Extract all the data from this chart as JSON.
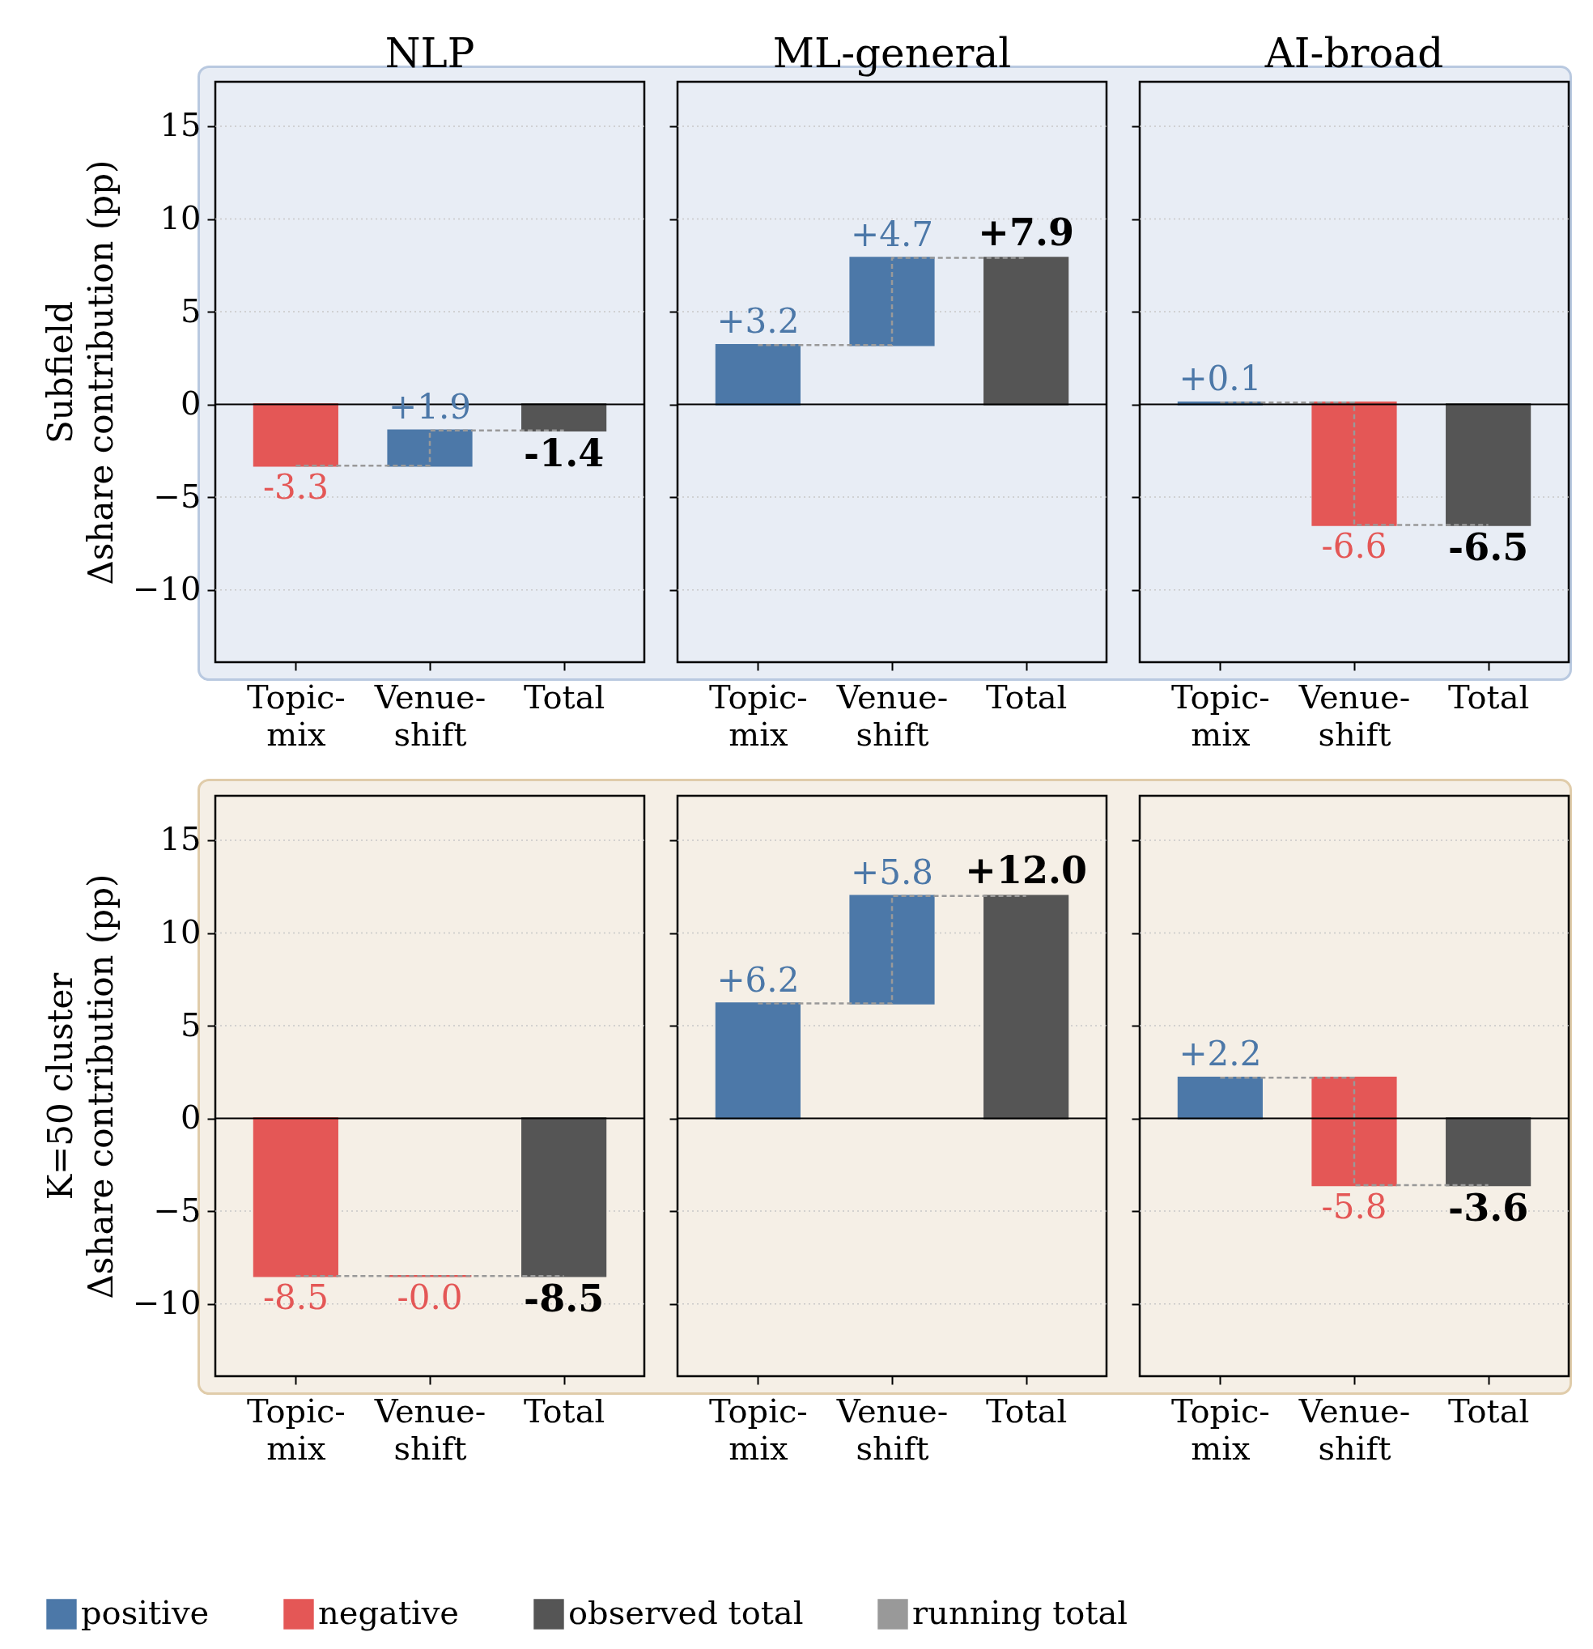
{
  "chart_data": [
    {
      "type": "bar",
      "title": "NLP",
      "ylabel": "Subfield\nΔshare contribution (pp)",
      "categories": [
        "Topic-mix",
        "Venue-shift",
        "Total"
      ],
      "ylim": [
        -13.9,
        17.4
      ],
      "yticks": [
        -10,
        -5,
        0,
        5,
        10,
        15
      ],
      "grid": "y",
      "ref_lines": [
        {
          "axis": "y",
          "value": 0
        }
      ],
      "series": [
        {
          "color": "#4c78a8",
          "values": [
            null,
            1.9,
            null
          ],
          "base": [
            null,
            -3.3,
            null
          ],
          "value_labels": [
            null,
            "+1.9",
            null
          ]
        },
        {
          "color": "#e45756",
          "values": [
            -3.3,
            null,
            null
          ],
          "base": [
            0,
            null,
            null
          ],
          "value_labels": [
            "-3.3",
            null,
            null
          ]
        },
        {
          "color": "#555555",
          "values": [
            null,
            null,
            -1.4
          ],
          "base": [
            null,
            null,
            0
          ],
          "value_labels": [
            null,
            null,
            "-1.4"
          ]
        },
        {
          "type": "step",
          "line_style": "dashed",
          "color": "#999999",
          "values": [
            -3.3,
            -1.4,
            -1.4
          ]
        }
      ]
    },
    {
      "type": "bar",
      "title": "ML-general",
      "categories": [
        "Topic-mix",
        "Venue-shift",
        "Total"
      ],
      "ylim": [
        -13.9,
        17.4
      ],
      "yticks": [
        -10,
        -5,
        0,
        5,
        10,
        15
      ],
      "tick_labels": "x",
      "grid": "y",
      "ref_lines": [
        {
          "axis": "y",
          "value": 0
        }
      ],
      "series": [
        {
          "color": "#4c78a8",
          "values": [
            3.2,
            4.7,
            null
          ],
          "base": [
            0,
            3.2,
            null
          ],
          "value_labels": [
            "+3.2",
            "+4.7",
            null
          ]
        },
        {
          "color": "#e45756",
          "values": [
            null,
            null,
            null
          ],
          "base": [
            null,
            null,
            null
          ],
          "value_labels": [
            null,
            null,
            null
          ]
        },
        {
          "color": "#555555",
          "values": [
            null,
            null,
            7.9
          ],
          "base": [
            null,
            null,
            0
          ],
          "value_labels": [
            null,
            null,
            "+7.9"
          ]
        },
        {
          "type": "step",
          "line_style": "dashed",
          "color": "#999999",
          "values": [
            3.2,
            7.9,
            7.9
          ]
        }
      ]
    },
    {
      "type": "bar",
      "title": "AI-broad",
      "categories": [
        "Topic-mix",
        "Venue-shift",
        "Total"
      ],
      "ylim": [
        -13.9,
        17.4
      ],
      "yticks": [
        -10,
        -5,
        0,
        5,
        10,
        15
      ],
      "tick_labels": "x",
      "grid": "y",
      "ref_lines": [
        {
          "axis": "y",
          "value": 0
        }
      ],
      "series": [
        {
          "color": "#4c78a8",
          "values": [
            0.1,
            null,
            null
          ],
          "base": [
            0,
            null,
            null
          ],
          "value_labels": [
            "+0.1",
            null,
            null
          ]
        },
        {
          "color": "#e45756",
          "values": [
            null,
            -6.6,
            null
          ],
          "base": [
            null,
            0.1,
            null
          ],
          "value_labels": [
            null,
            "-6.6",
            null
          ]
        },
        {
          "color": "#555555",
          "values": [
            null,
            null,
            -6.5
          ],
          "base": [
            null,
            null,
            0
          ],
          "value_labels": [
            null,
            null,
            "-6.5"
          ]
        },
        {
          "type": "step",
          "line_style": "dashed",
          "color": "#999999",
          "values": [
            0.1,
            -6.5,
            -6.5
          ]
        }
      ]
    },
    {
      "type": "bar",
      "ylabel": "K=50 cluster\nΔshare contribution (pp)",
      "categories": [
        "Topic-mix",
        "Venue-shift",
        "Total"
      ],
      "ylim": [
        -13.9,
        17.4
      ],
      "yticks": [
        -10,
        -5,
        0,
        5,
        10,
        15
      ],
      "grid": "y",
      "legend": "bottom",
      "ref_lines": [
        {
          "axis": "y",
          "value": 0
        }
      ],
      "series": [
        {
          "name": "positive",
          "color": "#4c78a8",
          "values": [
            null,
            null,
            null
          ],
          "base": [
            null,
            null,
            null
          ],
          "value_labels": [
            null,
            null,
            null
          ]
        },
        {
          "name": "negative",
          "color": "#e45756",
          "values": [
            -8.5,
            -0.0,
            null
          ],
          "base": [
            0,
            -8.5,
            null
          ],
          "value_labels": [
            "-8.5",
            "-0.0",
            null
          ]
        },
        {
          "name": "observed total",
          "color": "#555555",
          "values": [
            null,
            null,
            -8.5
          ],
          "base": [
            null,
            null,
            0
          ],
          "value_labels": [
            null,
            null,
            "-8.5"
          ]
        },
        {
          "name": "running total",
          "type": "step",
          "line_style": "dashed",
          "color": "#999999",
          "values": [
            -8.5,
            -8.5,
            -8.5
          ]
        }
      ]
    },
    {
      "type": "bar",
      "categories": [
        "Topic-mix",
        "Venue-shift",
        "Total"
      ],
      "ylim": [
        -13.9,
        17.4
      ],
      "yticks": [
        -10,
        -5,
        0,
        5,
        10,
        15
      ],
      "tick_labels": "x",
      "grid": "y",
      "ref_lines": [
        {
          "axis": "y",
          "value": 0
        }
      ],
      "series": [
        {
          "color": "#4c78a8",
          "values": [
            6.2,
            5.8,
            null
          ],
          "base": [
            0,
            6.2,
            null
          ],
          "value_labels": [
            "+6.2",
            "+5.8",
            null
          ]
        },
        {
          "color": "#e45756",
          "values": [
            null,
            null,
            null
          ],
          "base": [
            null,
            null,
            null
          ],
          "value_labels": [
            null,
            null,
            null
          ]
        },
        {
          "color": "#555555",
          "values": [
            null,
            null,
            12.0
          ],
          "base": [
            null,
            null,
            0
          ],
          "value_labels": [
            null,
            null,
            "+12.0"
          ]
        },
        {
          "type": "step",
          "line_style": "dashed",
          "color": "#999999",
          "values": [
            6.2,
            12.0,
            12.0
          ]
        }
      ]
    },
    {
      "type": "bar",
      "categories": [
        "Topic-mix",
        "Venue-shift",
        "Total"
      ],
      "ylim": [
        -13.9,
        17.4
      ],
      "yticks": [
        -10,
        -5,
        0,
        5,
        10,
        15
      ],
      "tick_labels": "x",
      "grid": "y",
      "ref_lines": [
        {
          "axis": "y",
          "value": 0
        }
      ],
      "series": [
        {
          "color": "#4c78a8",
          "values": [
            2.2,
            null,
            null
          ],
          "base": [
            0,
            null,
            null
          ],
          "value_labels": [
            "+2.2",
            null,
            null
          ]
        },
        {
          "color": "#e45756",
          "values": [
            null,
            -5.8,
            null
          ],
          "base": [
            null,
            2.2,
            null
          ],
          "value_labels": [
            null,
            "-5.8",
            null
          ]
        },
        {
          "color": "#555555",
          "values": [
            null,
            null,
            -3.6
          ],
          "base": [
            null,
            null,
            0
          ],
          "value_labels": [
            null,
            null,
            "-3.6"
          ]
        },
        {
          "type": "step",
          "line_style": "dashed",
          "color": "#999999",
          "values": [
            2.2,
            -3.6,
            -3.6
          ]
        }
      ]
    }
  ]
}
